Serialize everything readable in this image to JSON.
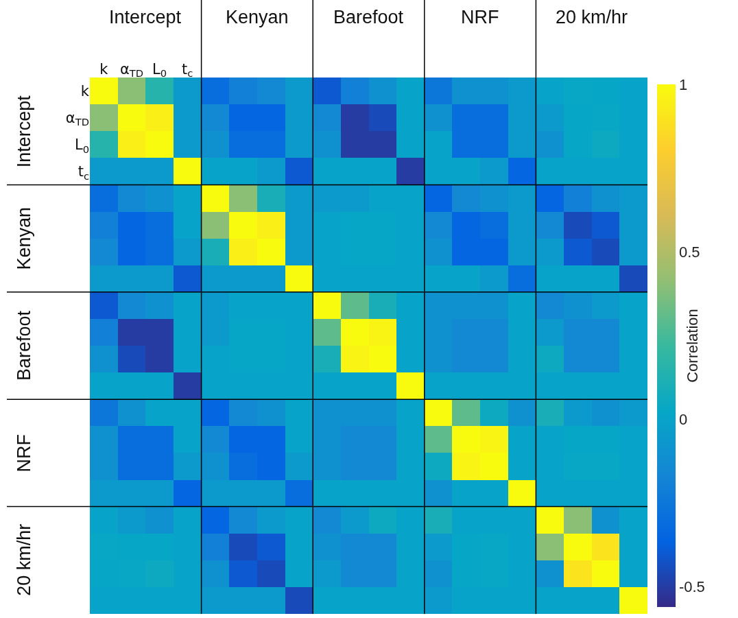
{
  "chart_data": {
    "type": "heatmap",
    "clabel": "Correlation",
    "clim": [
      -0.56,
      1
    ],
    "cticks": [
      -0.5,
      0,
      0.5,
      1
    ],
    "annotations": [
      "Intercept",
      "Kenyan",
      "Barefoot",
      "NRF",
      "20 km/hr"
    ],
    "categories": [
      "k",
      "α$_{TD}$",
      "L$_{0}$",
      "t$_{c}$",
      null,
      null,
      null,
      null,
      null,
      null,
      null,
      null,
      null,
      null,
      null,
      null,
      null,
      null,
      null,
      null
    ],
    "y_categories": [
      "k",
      "α$_{TD}$",
      "L$_{0}$",
      "t$_{c}$",
      null,
      null,
      null,
      null,
      null,
      null,
      null,
      null,
      null,
      null,
      null,
      null,
      null,
      null,
      null,
      null
    ],
    "cells": [
      [
        1,
        0.4,
        0.15,
        -0.05,
        -0.3,
        -0.2,
        -0.15,
        -0.05,
        -0.4,
        -0.2,
        -0.1,
        0,
        -0.25,
        -0.1,
        -0.1,
        -0.05,
        0,
        0.03,
        0.02,
        0
      ],
      [
        0.4,
        1,
        0.95,
        -0.05,
        -0.15,
        -0.35,
        -0.35,
        -0.05,
        -0.15,
        -0.5,
        -0.45,
        0,
        -0.1,
        -0.3,
        -0.3,
        -0.05,
        -0.05,
        0.02,
        0.03,
        0
      ],
      [
        0.15,
        0.95,
        1,
        -0.05,
        -0.1,
        -0.3,
        -0.3,
        -0.05,
        -0.1,
        -0.5,
        -0.5,
        0,
        0,
        -0.3,
        -0.3,
        -0.05,
        -0.1,
        0.02,
        0.05,
        0
      ],
      [
        -0.05,
        -0.05,
        -0.05,
        1,
        0,
        0,
        -0.05,
        -0.4,
        0,
        0,
        0,
        -0.5,
        0,
        0,
        -0.05,
        -0.35,
        0,
        0,
        0,
        0
      ],
      [
        -0.3,
        -0.15,
        -0.1,
        0,
        1,
        0.4,
        0.1,
        -0.05,
        -0.05,
        -0.05,
        0,
        0,
        -0.35,
        -0.15,
        -0.1,
        -0.05,
        -0.35,
        -0.2,
        -0.1,
        -0.05
      ],
      [
        -0.2,
        -0.35,
        -0.3,
        0,
        0.4,
        1,
        0.95,
        -0.05,
        0,
        0.02,
        0.02,
        0,
        -0.15,
        -0.35,
        -0.3,
        -0.05,
        -0.15,
        -0.45,
        -0.4,
        -0.05
      ],
      [
        -0.15,
        -0.35,
        -0.3,
        -0.05,
        0.1,
        0.95,
        1,
        -0.05,
        0,
        0.02,
        0.02,
        0,
        -0.1,
        -0.35,
        -0.35,
        -0.05,
        -0.05,
        -0.4,
        -0.45,
        -0.05
      ],
      [
        -0.05,
        -0.05,
        -0.05,
        -0.4,
        -0.05,
        -0.05,
        -0.05,
        1,
        0,
        0,
        0,
        0,
        0,
        0,
        -0.05,
        -0.3,
        0,
        0,
        0,
        -0.45
      ],
      [
        -0.4,
        -0.15,
        -0.1,
        0,
        -0.05,
        0,
        0,
        0,
        1,
        0.3,
        0.1,
        0,
        -0.1,
        -0.1,
        -0.1,
        0,
        -0.15,
        -0.1,
        -0.05,
        0
      ],
      [
        -0.2,
        -0.5,
        -0.5,
        0,
        -0.05,
        0.02,
        0.02,
        0,
        0.3,
        1,
        0.97,
        0,
        -0.1,
        -0.15,
        -0.15,
        0,
        -0.05,
        -0.15,
        -0.15,
        0
      ],
      [
        -0.1,
        -0.45,
        -0.5,
        0,
        0,
        0.02,
        0.02,
        0,
        0.1,
        0.97,
        1,
        0,
        -0.1,
        -0.15,
        -0.15,
        0,
        0.05,
        -0.15,
        -0.15,
        0
      ],
      [
        0,
        0,
        0,
        -0.5,
        0,
        0,
        0,
        0,
        0,
        0,
        0,
        1,
        0,
        0,
        0,
        0,
        0,
        0,
        0,
        0
      ],
      [
        -0.25,
        -0.1,
        0,
        0,
        -0.35,
        -0.15,
        -0.1,
        0,
        -0.1,
        -0.1,
        -0.1,
        0,
        1,
        0.3,
        0.05,
        -0.1,
        0.1,
        -0.05,
        -0.1,
        -0.05
      ],
      [
        -0.1,
        -0.3,
        -0.3,
        0,
        -0.15,
        -0.35,
        -0.35,
        0,
        -0.1,
        -0.15,
        -0.15,
        0,
        0.3,
        1,
        0.97,
        0,
        0,
        0.02,
        0.02,
        0
      ],
      [
        -0.1,
        -0.3,
        -0.3,
        -0.05,
        -0.1,
        -0.3,
        -0.35,
        -0.05,
        -0.1,
        -0.15,
        -0.15,
        0,
        0.05,
        0.97,
        1,
        0,
        0,
        0.03,
        0.03,
        0
      ],
      [
        -0.05,
        -0.05,
        -0.05,
        -0.35,
        -0.05,
        -0.05,
        -0.05,
        -0.3,
        0,
        0,
        0,
        0,
        -0.1,
        0,
        0,
        1,
        0,
        0,
        0,
        0
      ],
      [
        0,
        -0.05,
        -0.1,
        0,
        -0.35,
        -0.15,
        -0.05,
        0,
        -0.15,
        -0.05,
        0.05,
        0,
        0.1,
        0,
        0,
        0,
        1,
        0.4,
        -0.1,
        0
      ],
      [
        0.03,
        0.02,
        0.02,
        0,
        -0.2,
        -0.45,
        -0.4,
        0,
        -0.1,
        -0.15,
        -0.15,
        0,
        -0.05,
        0.02,
        0.03,
        0,
        0.4,
        1,
        0.9,
        0
      ],
      [
        0.02,
        0.03,
        0.05,
        0,
        -0.1,
        -0.4,
        -0.45,
        0,
        -0.05,
        -0.15,
        -0.15,
        0,
        -0.1,
        0.02,
        0.03,
        0,
        -0.1,
        0.9,
        1,
        0
      ],
      [
        0,
        0,
        0,
        0,
        -0.05,
        -0.05,
        -0.05,
        -0.45,
        0,
        0,
        0,
        0,
        -0.05,
        0,
        0,
        0,
        0,
        0,
        0,
        1
      ]
    ]
  }
}
